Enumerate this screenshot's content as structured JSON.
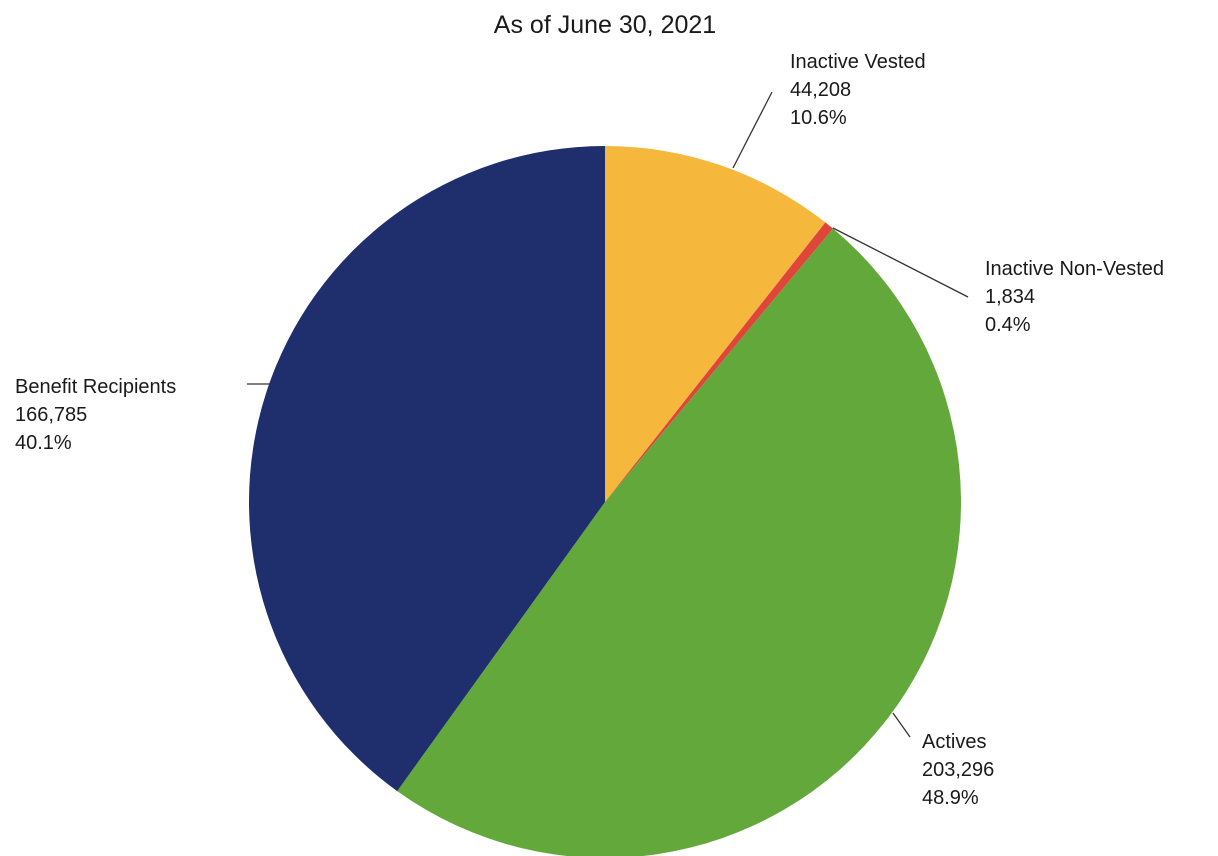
{
  "chart_data": {
    "type": "pie",
    "title": "As of June 30, 2021",
    "slices": [
      {
        "label": "Inactive Vested",
        "value": 44208,
        "value_text": "44,208",
        "percent_text": "10.6%",
        "color": "#f5b83d"
      },
      {
        "label": "Inactive Non-Vested",
        "value": 1834,
        "value_text": "1,834",
        "percent_text": "0.4%",
        "color": "#e0453a"
      },
      {
        "label": "Actives",
        "value": 203296,
        "value_text": "203,296",
        "percent_text": "48.9%",
        "color": "#62a83a"
      },
      {
        "label": "Benefit Recipients",
        "value": 166785,
        "value_text": "166,785",
        "percent_text": "40.1%",
        "color": "#1f2f6e"
      }
    ],
    "start_direction": "top",
    "direction": "clockwise"
  }
}
